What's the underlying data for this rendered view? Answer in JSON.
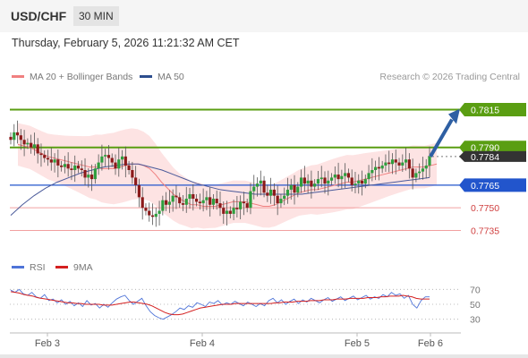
{
  "header": {
    "symbol": "USD/CHF",
    "timeframe": "30 MIN",
    "datetime": "Thursday, February 5, 2026 11:21:32 AM CET"
  },
  "legend": {
    "ma20_label": "MA 20 + Bollinger Bands",
    "ma50_label": "MA 50",
    "credit": "Research © 2026 Trading Central"
  },
  "rsi_legend": {
    "rsi_label": "RSI",
    "ma_label": "9MA"
  },
  "colors": {
    "bull": "#2e9e3e",
    "bear": "#8b1a1a",
    "resistance": "#5a9e12",
    "support": "#2255cc",
    "support_soft": "#f2a0a0",
    "ma20": "#f08080",
    "ma50": "#4a5a9a",
    "band": "#fde3e3",
    "arrow": "#2e5fa3",
    "rsi": "#4f74d8",
    "rsi_ma": "#d42020"
  },
  "chart_data": {
    "type": "candlestick",
    "instrument": "USD/CHF",
    "interval": "30 MIN",
    "price_axis_range": [
      0.7724,
      0.7826
    ],
    "x_axis_labels": [
      "Feb 3",
      "Feb 4",
      "Feb 5",
      "Feb 6"
    ],
    "levels": [
      {
        "value": 0.7815,
        "label": "0.7815",
        "style": "resistance"
      },
      {
        "value": 0.779,
        "label": "0.7790",
        "style": "resistance"
      },
      {
        "value": 0.7784,
        "label": "0.7784",
        "style": "last"
      },
      {
        "value": 0.7765,
        "label": "0.7765",
        "style": "support"
      },
      {
        "value": 0.775,
        "label": "0.7750",
        "style": "support_soft"
      },
      {
        "value": 0.7735,
        "label": "0.7735",
        "style": "support_soft"
      }
    ],
    "arrow": {
      "from": 0.7784,
      "to": 0.7815
    },
    "close_series": [
      0.7795,
      0.78,
      0.7798,
      0.7795,
      0.7792,
      0.7793,
      0.779,
      0.7792,
      0.7786,
      0.7785,
      0.7783,
      0.7782,
      0.778,
      0.7782,
      0.7778,
      0.7777,
      0.7779,
      0.7776,
      0.7775,
      0.7778,
      0.7776,
      0.7775,
      0.777,
      0.7772,
      0.7769,
      0.7776,
      0.778,
      0.7784,
      0.7785,
      0.7783,
      0.778,
      0.7776,
      0.7782,
      0.7784,
      0.7778,
      0.7775,
      0.777,
      0.7765,
      0.7757,
      0.775,
      0.7748,
      0.7745,
      0.7744,
      0.7746,
      0.7748,
      0.7755,
      0.7752,
      0.7754,
      0.7758,
      0.7757,
      0.7753,
      0.7752,
      0.7756,
      0.7759,
      0.7756,
      0.7754,
      0.7753,
      0.7755,
      0.7757,
      0.7752,
      0.7756,
      0.7753,
      0.775,
      0.7746,
      0.7748,
      0.7746,
      0.775,
      0.7749,
      0.7754,
      0.7753,
      0.775,
      0.7761,
      0.7764,
      0.7766,
      0.7768,
      0.776,
      0.7758,
      0.7762,
      0.7758,
      0.7753,
      0.7756,
      0.7758,
      0.7762,
      0.7765,
      0.776,
      0.7764,
      0.777,
      0.7766,
      0.7768,
      0.7764,
      0.7766,
      0.7769,
      0.777,
      0.7766,
      0.7768,
      0.777,
      0.7772,
      0.7769,
      0.7771,
      0.7773,
      0.777,
      0.7765,
      0.7766,
      0.7768,
      0.7766,
      0.7769,
      0.7773,
      0.7775,
      0.7777,
      0.7776,
      0.7778,
      0.778,
      0.7779,
      0.7782,
      0.778,
      0.7778,
      0.778,
      0.7782,
      0.7776,
      0.777,
      0.7773,
      0.7774,
      0.7776,
      0.7778,
      0.7784
    ],
    "ma20": [
      0.7792,
      0.7791,
      0.779,
      0.7788,
      0.7786,
      0.7784,
      0.7783,
      0.7782,
      0.7781,
      0.778,
      0.7779,
      0.7778,
      0.7777,
      0.7777,
      0.7776,
      0.7776,
      0.7776,
      0.7777,
      0.7778,
      0.7779,
      0.7779,
      0.7778,
      0.7776,
      0.7772,
      0.7767,
      0.7763,
      0.7759,
      0.7756,
      0.7754,
      0.7752,
      0.7752,
      0.7751,
      0.7751,
      0.7751,
      0.7752,
      0.7753,
      0.7754,
      0.7754,
      0.7754,
      0.7753,
      0.7752,
      0.7751,
      0.7751,
      0.7752,
      0.7754,
      0.7756,
      0.7758,
      0.776,
      0.7761,
      0.7762,
      0.7762,
      0.7763,
      0.7764,
      0.7765,
      0.7766,
      0.7767,
      0.7767,
      0.7768,
      0.7769,
      0.777,
      0.7771,
      0.7772,
      0.7773,
      0.7774,
      0.7775,
      0.7776,
      0.7777,
      0.7777,
      0.7777,
      0.7778,
      0.7779
    ],
    "ma50": [
      0.7745,
      0.7752,
      0.7758,
      0.7763,
      0.7767,
      0.777,
      0.7773,
      0.7775,
      0.7777,
      0.7778,
      0.7779,
      0.7779,
      0.7777,
      0.7775,
      0.7772,
      0.7769,
      0.7766,
      0.7764,
      0.7762,
      0.7761,
      0.776,
      0.7759,
      0.7759,
      0.7759,
      0.7759,
      0.7759,
      0.776,
      0.7761,
      0.7762,
      0.7763,
      0.7764,
      0.7765,
      0.7766,
      0.7767,
      0.7768,
      0.7769,
      0.777
    ],
    "rsi": {
      "axis_ticks": [
        70,
        50,
        30
      ],
      "range": [
        20,
        80
      ],
      "rsi_values": [
        69,
        66,
        70,
        64,
        62,
        66,
        60,
        58,
        63,
        55,
        57,
        52,
        56,
        50,
        54,
        48,
        52,
        47,
        55,
        49,
        51,
        45,
        50,
        46,
        52,
        57,
        60,
        62,
        55,
        50,
        54,
        58,
        48,
        40,
        35,
        32,
        30,
        33,
        36,
        40,
        45,
        43,
        48,
        46,
        52,
        50,
        47,
        53,
        51,
        55,
        49,
        52,
        50,
        54,
        51,
        48,
        53,
        50,
        47,
        51,
        48,
        55,
        58,
        52,
        56,
        50,
        54,
        57,
        51,
        56,
        53,
        58,
        55,
        52,
        56,
        59,
        54,
        57,
        60,
        55,
        58,
        61,
        56,
        59,
        62,
        57,
        60,
        58,
        63,
        60,
        66,
        62,
        64,
        58,
        62,
        50,
        45,
        55,
        60,
        60
      ],
      "ma_values": [
        67,
        66,
        65,
        63,
        62,
        61,
        59,
        58,
        57,
        56,
        55,
        54,
        53,
        52,
        52,
        51,
        51,
        50,
        50,
        50,
        50,
        49,
        49,
        49,
        50,
        51,
        52,
        53,
        53,
        52,
        51,
        50,
        48,
        45,
        42,
        39,
        37,
        36,
        36,
        37,
        39,
        41,
        43,
        45,
        46,
        47,
        48,
        49,
        50,
        50,
        50,
        51,
        51,
        51,
        51,
        51,
        51,
        51,
        51,
        51,
        52,
        52,
        53,
        53,
        53,
        54,
        54,
        54,
        55,
        55,
        55,
        56,
        56,
        56,
        57,
        57,
        57,
        58,
        58,
        58,
        58,
        59,
        59,
        59,
        60,
        60,
        61,
        61,
        61,
        62,
        61,
        60,
        58,
        57,
        57,
        57
      ]
    }
  }
}
